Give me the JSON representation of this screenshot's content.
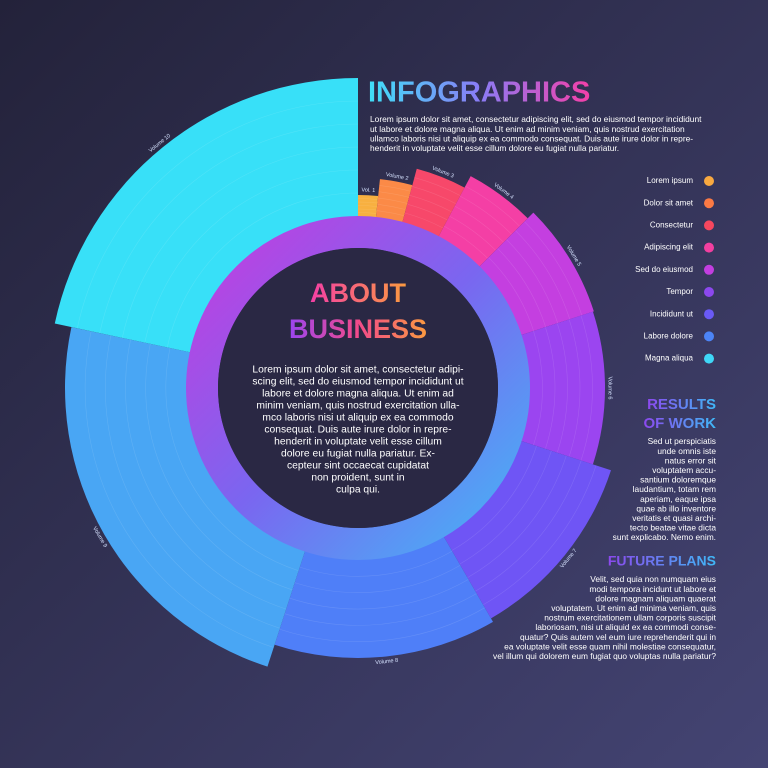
{
  "chart_data": {
    "type": "radial-bar",
    "categories": [
      "Vol. 1",
      "Volume 2",
      "Volume 3",
      "Volume 4",
      "Volume 5",
      "Volume 6",
      "Volume 7",
      "Volume 8",
      "Volume 9",
      "Volume 10"
    ],
    "values": [
      21,
      38,
      55,
      68,
      76,
      75,
      94,
      98,
      121,
      138
    ],
    "spans": [
      6,
      9,
      13,
      17,
      27,
      36,
      42,
      48,
      84,
      78
    ],
    "colors": [
      "#f8b040",
      "#fb8a47",
      "#f7486a",
      "#f43fa5",
      "#c43fe0",
      "#9b45f0",
      "#6f55f5",
      "#4f7ff8",
      "#49a6f4",
      "#38e0f8"
    ]
  },
  "legend": [
    {
      "label": "Lorem ipsum",
      "color": "#f8a940"
    },
    {
      "label": "Dolor sit amet",
      "color": "#fb7a44"
    },
    {
      "label": "Consectetur",
      "color": "#f6475e"
    },
    {
      "label": "Adipiscing elit",
      "color": "#f23fa0"
    },
    {
      "label": "Sed do eiusmod",
      "color": "#c23ee0"
    },
    {
      "label": "Tempor",
      "color": "#8c48ee"
    },
    {
      "label": "Incididunt ut",
      "color": "#6a5af5"
    },
    {
      "label": "Labore dolore",
      "color": "#4c84f6"
    },
    {
      "label": "Magna aliqua",
      "color": "#3fd7f7"
    }
  ],
  "header": {
    "title": "INFOGRAPHICS",
    "text": [
      "Lorem ipsum dolor sit amet, consectetur adipiscing elit, sed do eiusmod tempor incididunt",
      "ut labore et dolore magna aliqua. Ut enim ad minim veniam, quis nostrud exercitation",
      "ullamco laboris nisi ut aliquip ex ea commodo consequat. Duis aute irure dolor in repre-",
      "henderit in voluptate velit esse cillum dolore eu fugiat nulla pariatur."
    ]
  },
  "about": {
    "title": [
      "ABOUT",
      "BUSINESS"
    ],
    "text": [
      "Lorem ipsum dolor sit amet, consectetur adipi-",
      "scing elit, sed do eiusmod tempor incididunt ut",
      "labore et dolore magna aliqua. Ut enim ad",
      "minim veniam, quis nostrud exercitation ulla-",
      "mco laboris nisi ut aliquip ex ea commodo",
      "consequat. Duis aute irure dolor in repre-",
      "henderit in voluptate velit esse cillum",
      "dolore eu fugiat nulla pariatur. Ex-",
      "cepteur sint occaecat cupidatat",
      "non proident, sunt in",
      "culpa qui."
    ]
  },
  "results": {
    "title": [
      "RESULTS",
      "OF WORK"
    ],
    "text": [
      "Sed ut perspiciatis",
      "unde omnis iste",
      "natus error sit",
      "voluptatem accu-",
      "santium doloremque",
      "laudantium, totam rem",
      "aperiam, eaque ipsa",
      "quae ab illo inventore",
      "veritatis et quasi archi-",
      "tecto beatae vitae dicta",
      "sunt explicabo. Nemo enim."
    ]
  },
  "future": {
    "title": [
      "FUTURE PLANS"
    ],
    "text": [
      "Velit, sed quia non numquam eius",
      "modi tempora incidunt ut labore et",
      "dolore magnam aliquam quaerat",
      "voluptatem. Ut enim ad minima veniam, quis",
      "nostrum exercitationem ullam corporis suscipit",
      "laboriosam, nisi ut aliquid ex ea commodi conse-",
      "quatur? Quis autem vel eum iure reprehenderit qui in",
      "ea voluptate velit esse quam nihil molestiae consequatur,",
      "vel illum qui dolorem eum fugiat quo voluptas nulla pariatur?"
    ]
  }
}
